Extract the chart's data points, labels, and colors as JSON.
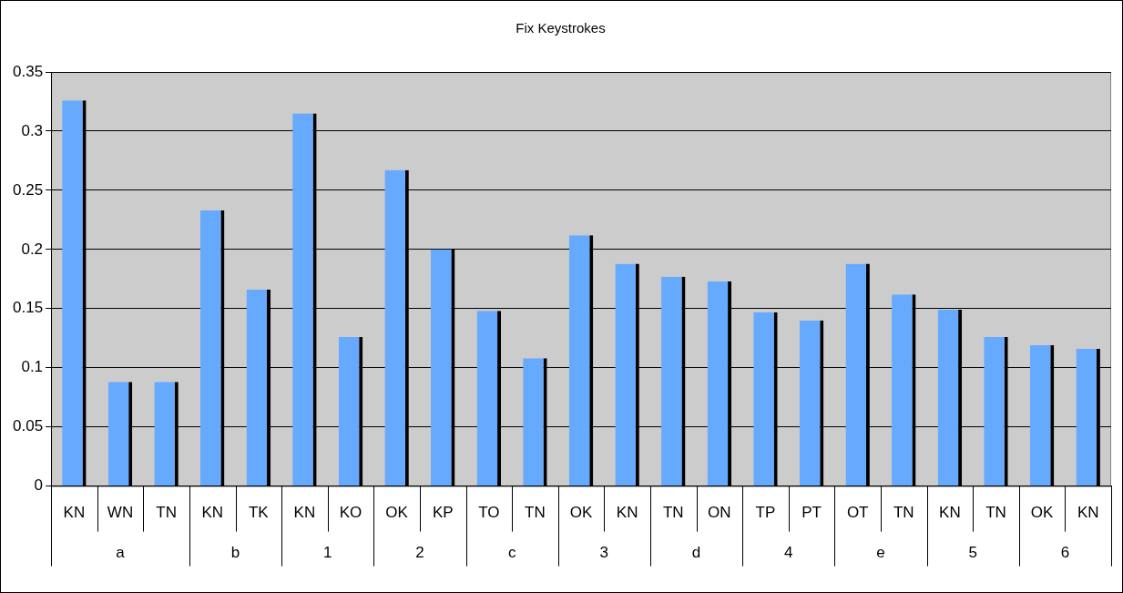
{
  "chart_data": {
    "type": "bar",
    "title": "Fix Keystrokes",
    "categories": [
      "KN",
      "WN",
      "TN",
      "KN",
      "TK",
      "KN",
      "KO",
      "OK",
      "KP",
      "TO",
      "TN",
      "OK",
      "KN",
      "TN",
      "ON",
      "TP",
      "PT",
      "OT",
      "TN",
      "KN",
      "TN",
      "OK",
      "KN"
    ],
    "values": [
      0.326,
      0.088,
      0.088,
      0.233,
      0.166,
      0.315,
      0.126,
      0.267,
      0.2,
      0.148,
      0.108,
      0.212,
      0.188,
      0.177,
      0.173,
      0.147,
      0.14,
      0.188,
      0.162,
      0.149,
      0.126,
      0.119,
      0.116
    ],
    "color": "#66aaff",
    "ylim": [
      0,
      0.35
    ],
    "yticks": [
      0,
      0.05,
      0.1,
      0.15,
      0.2,
      0.25,
      0.3,
      0.35
    ],
    "grid": "y",
    "legend": false,
    "annotations": [
      "a",
      "b",
      "1",
      "2",
      "c",
      "3",
      "d",
      "4",
      "e",
      "5",
      "6"
    ]
  }
}
